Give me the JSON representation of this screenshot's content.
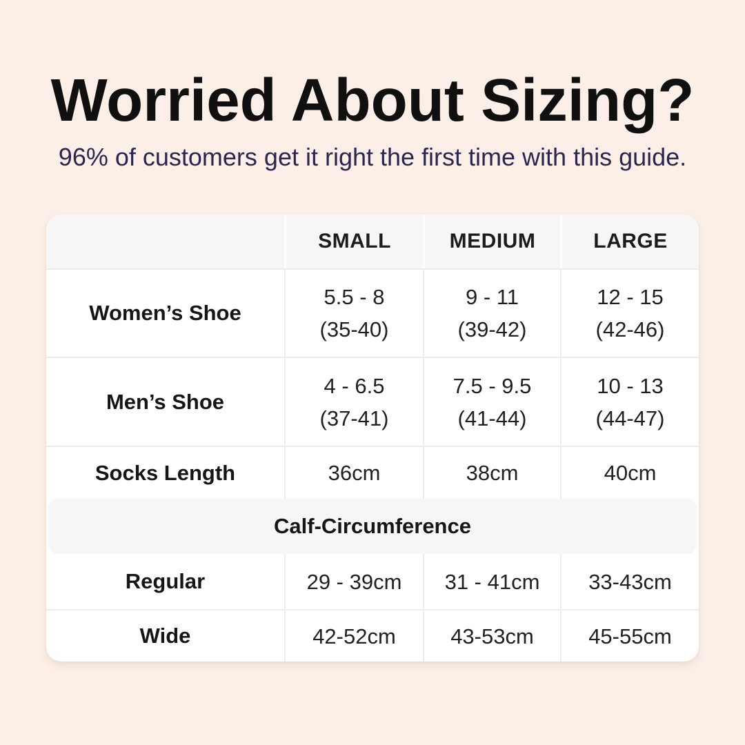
{
  "colors": {
    "background": "#fcefe7",
    "table_background": "#ffffff",
    "header_background": "#f6f6f6",
    "section_band_background": "#f6f6f6",
    "divider": "#ececec",
    "title_text": "#101010",
    "subtitle_text": "#2a2650",
    "table_text": "#1c1c1c"
  },
  "header": {
    "title": "Worried About Sizing?",
    "subtitle": "96% of customers get it right the first time with this guide."
  },
  "table": {
    "columns": [
      "",
      "SMALL",
      "MEDIUM",
      "LARGE"
    ],
    "rows": [
      {
        "label": "Women’s Shoe",
        "values": [
          [
            "5.5 - 8",
            "(35-40)"
          ],
          [
            "9 - 11",
            "(39-42)"
          ],
          [
            "12 - 15",
            "(42-46)"
          ]
        ]
      },
      {
        "label": "Men’s Shoe",
        "values": [
          [
            "4 - 6.5",
            "(37-41)"
          ],
          [
            "7.5 - 9.5",
            "(41-44)"
          ],
          [
            "10 - 13",
            "(44-47)"
          ]
        ]
      },
      {
        "label": "Socks Length",
        "values": [
          [
            "36cm"
          ],
          [
            "38cm"
          ],
          [
            "40cm"
          ]
        ]
      }
    ],
    "section_header": "Calf-Circumference",
    "section_rows": [
      {
        "label": "Regular",
        "values": [
          [
            "29 - 39cm"
          ],
          [
            "31 - 41cm"
          ],
          [
            "33-43cm"
          ]
        ]
      },
      {
        "label": "Wide",
        "values": [
          [
            "42-52cm"
          ],
          [
            "43-53cm"
          ],
          [
            "45-55cm"
          ]
        ]
      }
    ]
  }
}
